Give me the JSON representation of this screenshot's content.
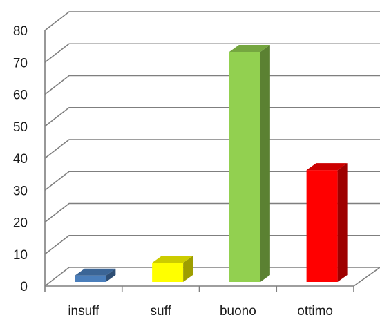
{
  "chart_data": {
    "type": "bar",
    "categories": [
      "insuff",
      "suff",
      "buono",
      "ottimo"
    ],
    "values": [
      2,
      6,
      72,
      35
    ],
    "ylim": [
      0,
      80
    ],
    "yticks": [
      "0",
      "10",
      "20",
      "30",
      "40",
      "50",
      "60",
      "70",
      "80"
    ],
    "grid": true,
    "legend": "none",
    "style": "3d-column",
    "colors": [
      "#4a7ebb",
      "#ffff00",
      "#92d050",
      "#ff0000"
    ]
  }
}
